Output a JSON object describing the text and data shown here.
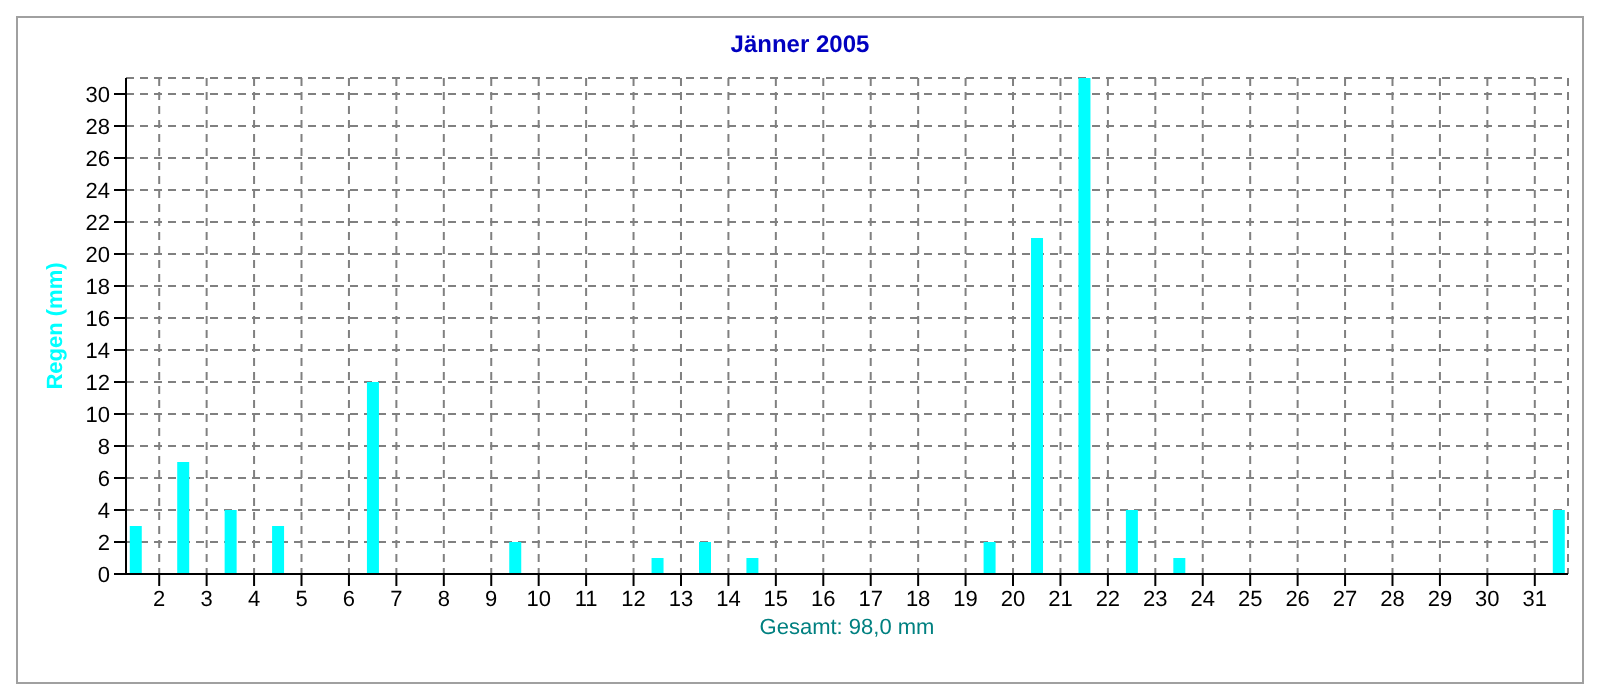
{
  "chart_data": {
    "type": "bar",
    "title": "Jänner 2005",
    "xlabel": "Gesamt: 98,0 mm",
    "ylabel": "Regen  (mm)",
    "x": [
      1,
      2,
      3,
      4,
      5,
      6,
      7,
      8,
      9,
      10,
      11,
      12,
      13,
      14,
      15,
      16,
      17,
      18,
      19,
      20,
      21,
      22,
      23,
      24,
      25,
      26,
      27,
      28,
      29,
      30,
      31
    ],
    "values": [
      3,
      7,
      4,
      3,
      0,
      12,
      0,
      0,
      2,
      0,
      0,
      1,
      2,
      1,
      0,
      0,
      0,
      0,
      2,
      21,
      31,
      4,
      1,
      0,
      0,
      0,
      0,
      0,
      0,
      0,
      4
    ],
    "color": "#00ffff",
    "xlim": [
      0.8,
      31.2
    ],
    "xticks": [
      {
        "value": 1.5,
        "label": "2"
      },
      {
        "value": 2.5,
        "label": "3"
      },
      {
        "value": 3.5,
        "label": "4"
      },
      {
        "value": 4.5,
        "label": "5"
      },
      {
        "value": 5.5,
        "label": "6"
      },
      {
        "value": 6.5,
        "label": "7"
      },
      {
        "value": 7.5,
        "label": "8"
      },
      {
        "value": 8.5,
        "label": "9"
      },
      {
        "value": 9.5,
        "label": "10"
      },
      {
        "value": 10.5,
        "label": "11"
      },
      {
        "value": 11.5,
        "label": "12"
      },
      {
        "value": 12.5,
        "label": "13"
      },
      {
        "value": 13.5,
        "label": "14"
      },
      {
        "value": 14.5,
        "label": "15"
      },
      {
        "value": 15.5,
        "label": "16"
      },
      {
        "value": 16.5,
        "label": "17"
      },
      {
        "value": 17.5,
        "label": "18"
      },
      {
        "value": 18.5,
        "label": "19"
      },
      {
        "value": 19.5,
        "label": "20"
      },
      {
        "value": 20.5,
        "label": "21"
      },
      {
        "value": 21.5,
        "label": "22"
      },
      {
        "value": 22.5,
        "label": "23"
      },
      {
        "value": 23.5,
        "label": "24"
      },
      {
        "value": 24.5,
        "label": "25"
      },
      {
        "value": 25.5,
        "label": "26"
      },
      {
        "value": 26.5,
        "label": "27"
      },
      {
        "value": 27.5,
        "label": "28"
      },
      {
        "value": 28.5,
        "label": "29"
      },
      {
        "value": 29.5,
        "label": "30"
      },
      {
        "value": 30.5,
        "label": "31"
      }
    ],
    "ylim": [
      0,
      31
    ],
    "yticks": [
      0,
      2,
      4,
      6,
      8,
      10,
      12,
      14,
      16,
      18,
      20,
      22,
      24,
      26,
      28,
      30
    ],
    "grid": true,
    "legend": false
  }
}
